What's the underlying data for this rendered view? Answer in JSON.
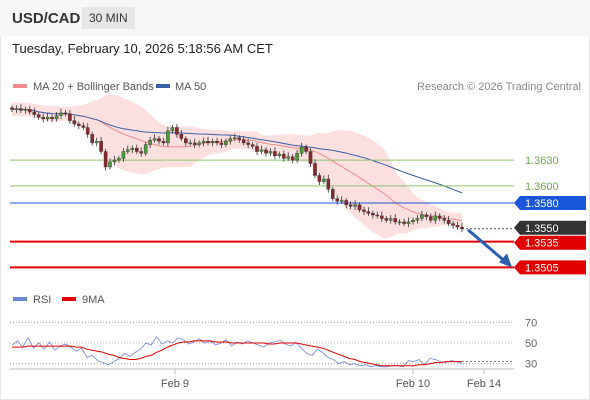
{
  "header": {
    "symbol": "USD/CAD",
    "timeframe": "30 MIN"
  },
  "datetime": "Tuesday, February 10, 2026 5:18:56 AM CET",
  "legend": [
    {
      "label": "MA 20 + Bollinger Bands",
      "color": "#f08c8c"
    },
    {
      "label": "MA 50",
      "color": "#3a5fa8"
    }
  ],
  "credit": "Research © 2026 Trading Central",
  "rsi_legend": [
    {
      "label": "RSI",
      "color": "#6b86d9"
    },
    {
      "label": "9MA",
      "color": "#e00000"
    }
  ],
  "chart_data": [
    {
      "type": "candlestick",
      "ylim": [
        1.3488,
        1.37
      ],
      "levels": [
        {
          "label": "1.3630",
          "value": 1.363,
          "color": "#8fc46a",
          "kind": "resistance"
        },
        {
          "label": "1.3600",
          "value": 1.36,
          "color": "#8fc46a",
          "kind": "resistance"
        },
        {
          "label": "1.3580",
          "value": 1.358,
          "color": "#1a56db",
          "kind": "pivot"
        },
        {
          "label": "1.3550",
          "value": 1.355,
          "color": "#333333",
          "kind": "last"
        },
        {
          "label": "1.3535",
          "value": 1.3535,
          "color": "#e00000",
          "kind": "support"
        },
        {
          "label": "1.3505",
          "value": 1.3505,
          "color": "#e00000",
          "kind": "support"
        }
      ],
      "close": [
        1.3689,
        1.369,
        1.3688,
        1.3689,
        1.3686,
        1.3683,
        1.368,
        1.3678,
        1.368,
        1.3678,
        1.3682,
        1.3685,
        1.3684,
        1.3676,
        1.3672,
        1.367,
        1.3668,
        1.366,
        1.365,
        1.3652,
        1.364,
        1.3622,
        1.3628,
        1.363,
        1.3632,
        1.364,
        1.3642,
        1.3644,
        1.364,
        1.3638,
        1.3648,
        1.3653,
        1.3655,
        1.3652,
        1.365,
        1.3664,
        1.3668,
        1.366,
        1.3655,
        1.365,
        1.365,
        1.3648,
        1.365,
        1.3652,
        1.365,
        1.3652,
        1.365,
        1.3648,
        1.3652,
        1.3655,
        1.3656,
        1.3654,
        1.365,
        1.3648,
        1.3646,
        1.364,
        1.3642,
        1.3638,
        1.364,
        1.3635,
        1.3637,
        1.3632,
        1.3634,
        1.363,
        1.3638,
        1.3645,
        1.364,
        1.3626,
        1.3612,
        1.3605,
        1.3608,
        1.3596,
        1.3585,
        1.3582,
        1.3583,
        1.3578,
        1.3576,
        1.3578,
        1.3572,
        1.357,
        1.3568,
        1.3566,
        1.3565,
        1.3562,
        1.356,
        1.3562,
        1.3558,
        1.3558,
        1.3556,
        1.3558,
        1.356,
        1.3562,
        1.3566,
        1.3564,
        1.356,
        1.3565,
        1.3562,
        1.356,
        1.3556,
        1.3554,
        1.3552,
        1.355
      ]
    },
    {
      "type": "line",
      "ylim": [
        20,
        80
      ],
      "yticks": [
        "70",
        "50",
        "30"
      ],
      "yvalues": [
        70,
        50,
        30
      ],
      "xticks": [
        "Feb 9",
        "Feb 10",
        "Feb 14"
      ],
      "series": [
        {
          "name": "RSI",
          "color": "#6b86d9",
          "values": [
            48,
            52,
            46,
            55,
            45,
            50,
            44,
            51,
            43,
            47,
            49,
            46,
            42,
            45,
            36,
            38,
            33,
            31,
            29,
            32,
            35,
            40,
            37,
            41,
            44,
            50,
            48,
            56,
            49,
            52,
            50,
            55,
            53,
            49,
            51,
            54,
            50,
            52,
            48,
            50,
            53,
            47,
            51,
            49,
            52,
            50,
            48,
            46,
            50,
            51,
            53,
            49,
            47,
            51,
            45,
            40,
            38,
            44,
            41,
            36,
            34,
            30,
            32,
            29,
            30,
            28,
            29,
            27,
            28,
            27,
            27,
            28,
            28,
            27,
            33,
            32,
            34,
            29,
            35,
            34,
            32,
            31,
            33,
            32,
            30
          ]
        },
        {
          "name": "9MA",
          "color": "#e00000",
          "values": [
            46,
            46,
            46,
            47,
            47,
            47,
            47,
            47,
            47,
            47,
            47,
            47,
            46,
            46,
            44,
            43,
            42,
            41,
            39,
            38,
            36,
            35,
            34,
            34,
            35,
            37,
            38,
            41,
            43,
            46,
            48,
            50,
            51,
            51,
            52,
            52,
            52,
            52,
            51,
            51,
            51,
            50,
            50,
            50,
            50,
            50,
            50,
            50,
            49,
            49,
            50,
            50,
            50,
            50,
            49,
            48,
            47,
            46,
            45,
            43,
            41,
            39,
            37,
            35,
            34,
            32,
            31,
            30,
            29,
            28,
            28,
            28,
            28,
            28,
            28,
            28,
            29,
            29,
            30,
            31,
            31,
            32,
            32,
            32,
            32
          ]
        }
      ]
    }
  ]
}
